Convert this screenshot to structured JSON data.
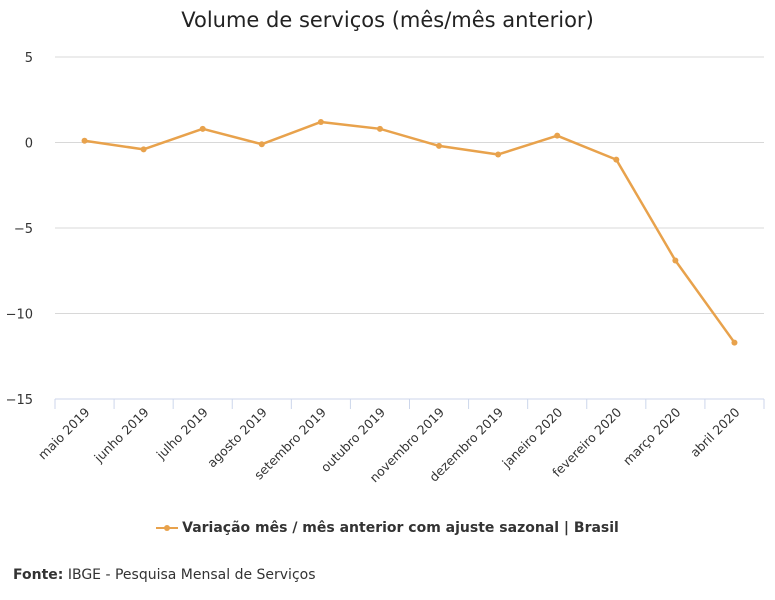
{
  "chart_data": {
    "type": "line",
    "title": "Volume de serviços (mês/mês anterior)",
    "categories": [
      "maio 2019",
      "junho 2019",
      "julho 2019",
      "agosto 2019",
      "setembro 2019",
      "outubro 2019",
      "novembro 2019",
      "dezembro 2019",
      "janeiro 2020",
      "fevereiro 2020",
      "março 2020",
      "abril 2020"
    ],
    "series": [
      {
        "name": "Variação mês / mês anterior com ajuste sazonal | Brasil",
        "color": "#E8A24C",
        "values": [
          0.1,
          -0.4,
          0.8,
          -0.1,
          1.2,
          0.8,
          -0.2,
          -0.7,
          0.4,
          -1.0,
          -6.9,
          -11.7
        ]
      }
    ],
    "ylim": [
      -15,
      5
    ],
    "yticks": [
      5,
      0,
      -5,
      -10,
      -15
    ],
    "ytick_labels": [
      "5",
      "0",
      "−5",
      "−10",
      "−15"
    ],
    "grid": true,
    "legend_position": "bottom"
  },
  "source": {
    "label": "Fonte:",
    "text": "IBGE - Pesquisa Mensal de Serviços"
  }
}
